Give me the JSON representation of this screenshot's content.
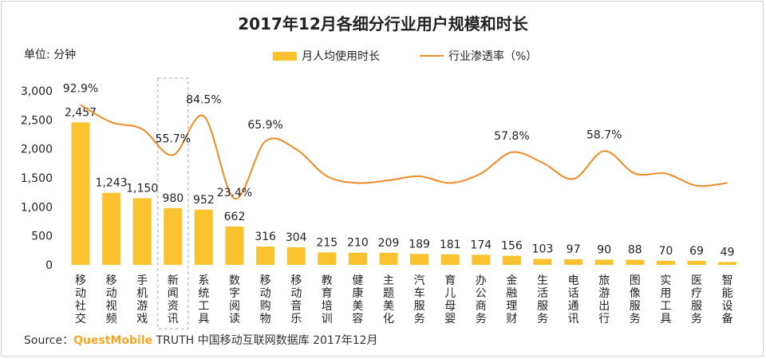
{
  "chart_data": {
    "type": "bar",
    "title": "2017年12月各细分行业用户规模和时长",
    "ylabel": "单位: 分钟",
    "ylim": [
      0,
      3000
    ],
    "yticks": [
      "3,000",
      "2,500",
      "2,000",
      "1,500",
      "1,000",
      "500",
      "0"
    ],
    "categories": [
      "移动社交",
      "移动视频",
      "手机游戏",
      "新闻资讯",
      "系统工具",
      "数字阅读",
      "移动购物",
      "移动音乐",
      "教育培训",
      "健康美容",
      "主题美化",
      "汽车服务",
      "育儿母婴",
      "办公商务",
      "金融理财",
      "生活服务",
      "电话通讯",
      "旅游出行",
      "图像服务",
      "实用工具",
      "医疗服务",
      "智能设备"
    ],
    "highlight_category": "新闻资讯",
    "series": [
      {
        "name": "月人均使用时长",
        "type": "bar",
        "color": "#F9C22E",
        "values": [
          2457,
          1243,
          1150,
          980,
          952,
          662,
          316,
          304,
          215,
          210,
          209,
          189,
          181,
          174,
          156,
          103,
          97,
          90,
          88,
          70,
          69,
          49
        ],
        "labels": [
          "2,457",
          "1,243",
          "1,150",
          "980",
          "952",
          "662",
          "316",
          "304",
          "215",
          "210",
          "209",
          "189",
          "181",
          "174",
          "156",
          "103",
          "97",
          "90",
          "88",
          "70",
          "69",
          "49"
        ]
      },
      {
        "name": "行业渗透率（%）",
        "type": "line",
        "color": "#F08A24",
        "values_percent": [
          92.9,
          80.0,
          75.0,
          55.7,
          84.5,
          23.4,
          65.9,
          60.0,
          40.0,
          35.0,
          37.0,
          40.0,
          35.0,
          42.0,
          57.8,
          50.0,
          38.0,
          58.7,
          42.0,
          42.0,
          33.0,
          35.0
        ],
        "data_labels": [
          {
            "index": 0,
            "text": "92.9%"
          },
          {
            "index": 3,
            "text": "55.7%"
          },
          {
            "index": 4,
            "text": "84.5%"
          },
          {
            "index": 5,
            "text": "23.4%"
          },
          {
            "index": 6,
            "text": "65.9%"
          },
          {
            "index": 14,
            "text": "57.8%"
          },
          {
            "index": 17,
            "text": "58.7%"
          }
        ]
      }
    ],
    "legend": {
      "position": "top",
      "items": [
        "月人均使用时长",
        "行业渗透率（%）"
      ]
    },
    "grid": false
  },
  "source": {
    "prefix": "Source：",
    "brand": "QuestMobile",
    "rest": " TRUTH 中国移动互联网数据库 2017年12月"
  }
}
